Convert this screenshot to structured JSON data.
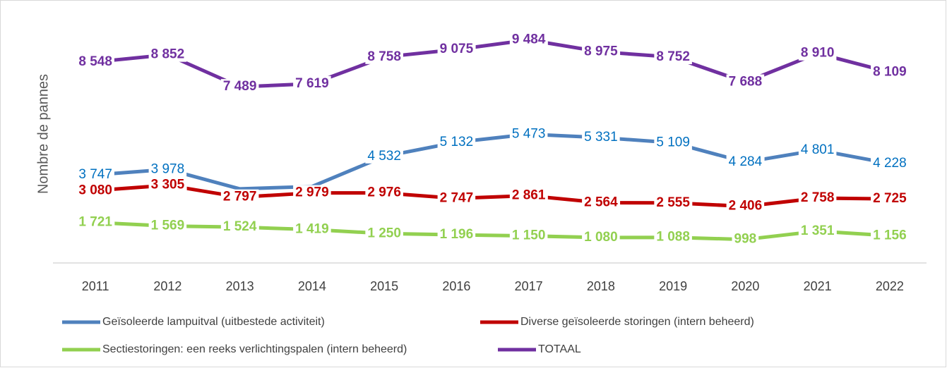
{
  "chart_data": {
    "type": "line",
    "y_label": "Nombre de pannes",
    "categories": [
      "2011",
      "2012",
      "2013",
      "2014",
      "2015",
      "2016",
      "2017",
      "2018",
      "2019",
      "2020",
      "2021",
      "2022"
    ],
    "ylim": [
      0,
      11000
    ],
    "series": [
      {
        "name": "Geïsoleerde lampuitval (uitbestede activiteit)",
        "color": "#4f81bd",
        "label_color": "#0070c0",
        "bold": false,
        "values": [
          3747,
          3978,
          3150,
          3250,
          4532,
          5132,
          5473,
          5331,
          5109,
          4284,
          4801,
          4228
        ],
        "value_labels": [
          "3 747",
          "3 978",
          null,
          null,
          "4 532",
          "5 132",
          "5 473",
          "5 331",
          "5 109",
          "4 284",
          "4 801",
          "4 228"
        ]
      },
      {
        "name": "Diverse geïsoleerde storingen (intern beheerd)",
        "color": "#c00000",
        "label_color": "#c00000",
        "bold": true,
        "values": [
          3080,
          3305,
          2797,
          2979,
          2976,
          2747,
          2861,
          2564,
          2555,
          2406,
          2758,
          2725
        ],
        "value_labels": [
          "3 080",
          "3 305",
          "2 797",
          "2 979",
          "2 976",
          "2 747",
          "2 861",
          "2 564",
          "2 555",
          "2 406",
          "2 758",
          "2 725"
        ]
      },
      {
        "name": "Sectiestoringen: een reeks verlichtingspalen (intern beheerd)",
        "color": "#92d050",
        "label_color": "#92d050",
        "bold": true,
        "values": [
          1721,
          1569,
          1524,
          1419,
          1250,
          1196,
          1150,
          1080,
          1088,
          998,
          1351,
          1156
        ],
        "value_labels": [
          "1 721",
          "1 569",
          "1 524",
          "1 419",
          "1 250",
          "1 196",
          "1 150",
          "1 080",
          "1 088",
          "998",
          "1 351",
          "1 156"
        ]
      },
      {
        "name": "TOTAAL",
        "color": "#7030a0",
        "label_color": "#7030a0",
        "bold": true,
        "values": [
          8548,
          8852,
          7489,
          7619,
          8758,
          9075,
          9484,
          8975,
          8752,
          7688,
          8910,
          8109
        ],
        "value_labels": [
          "8 548",
          "8 852",
          "7 489",
          "7 619",
          "8 758",
          "9 075",
          "9 484",
          "8 975",
          "8 752",
          "7 688",
          "8 910",
          "8 109"
        ]
      }
    ]
  }
}
